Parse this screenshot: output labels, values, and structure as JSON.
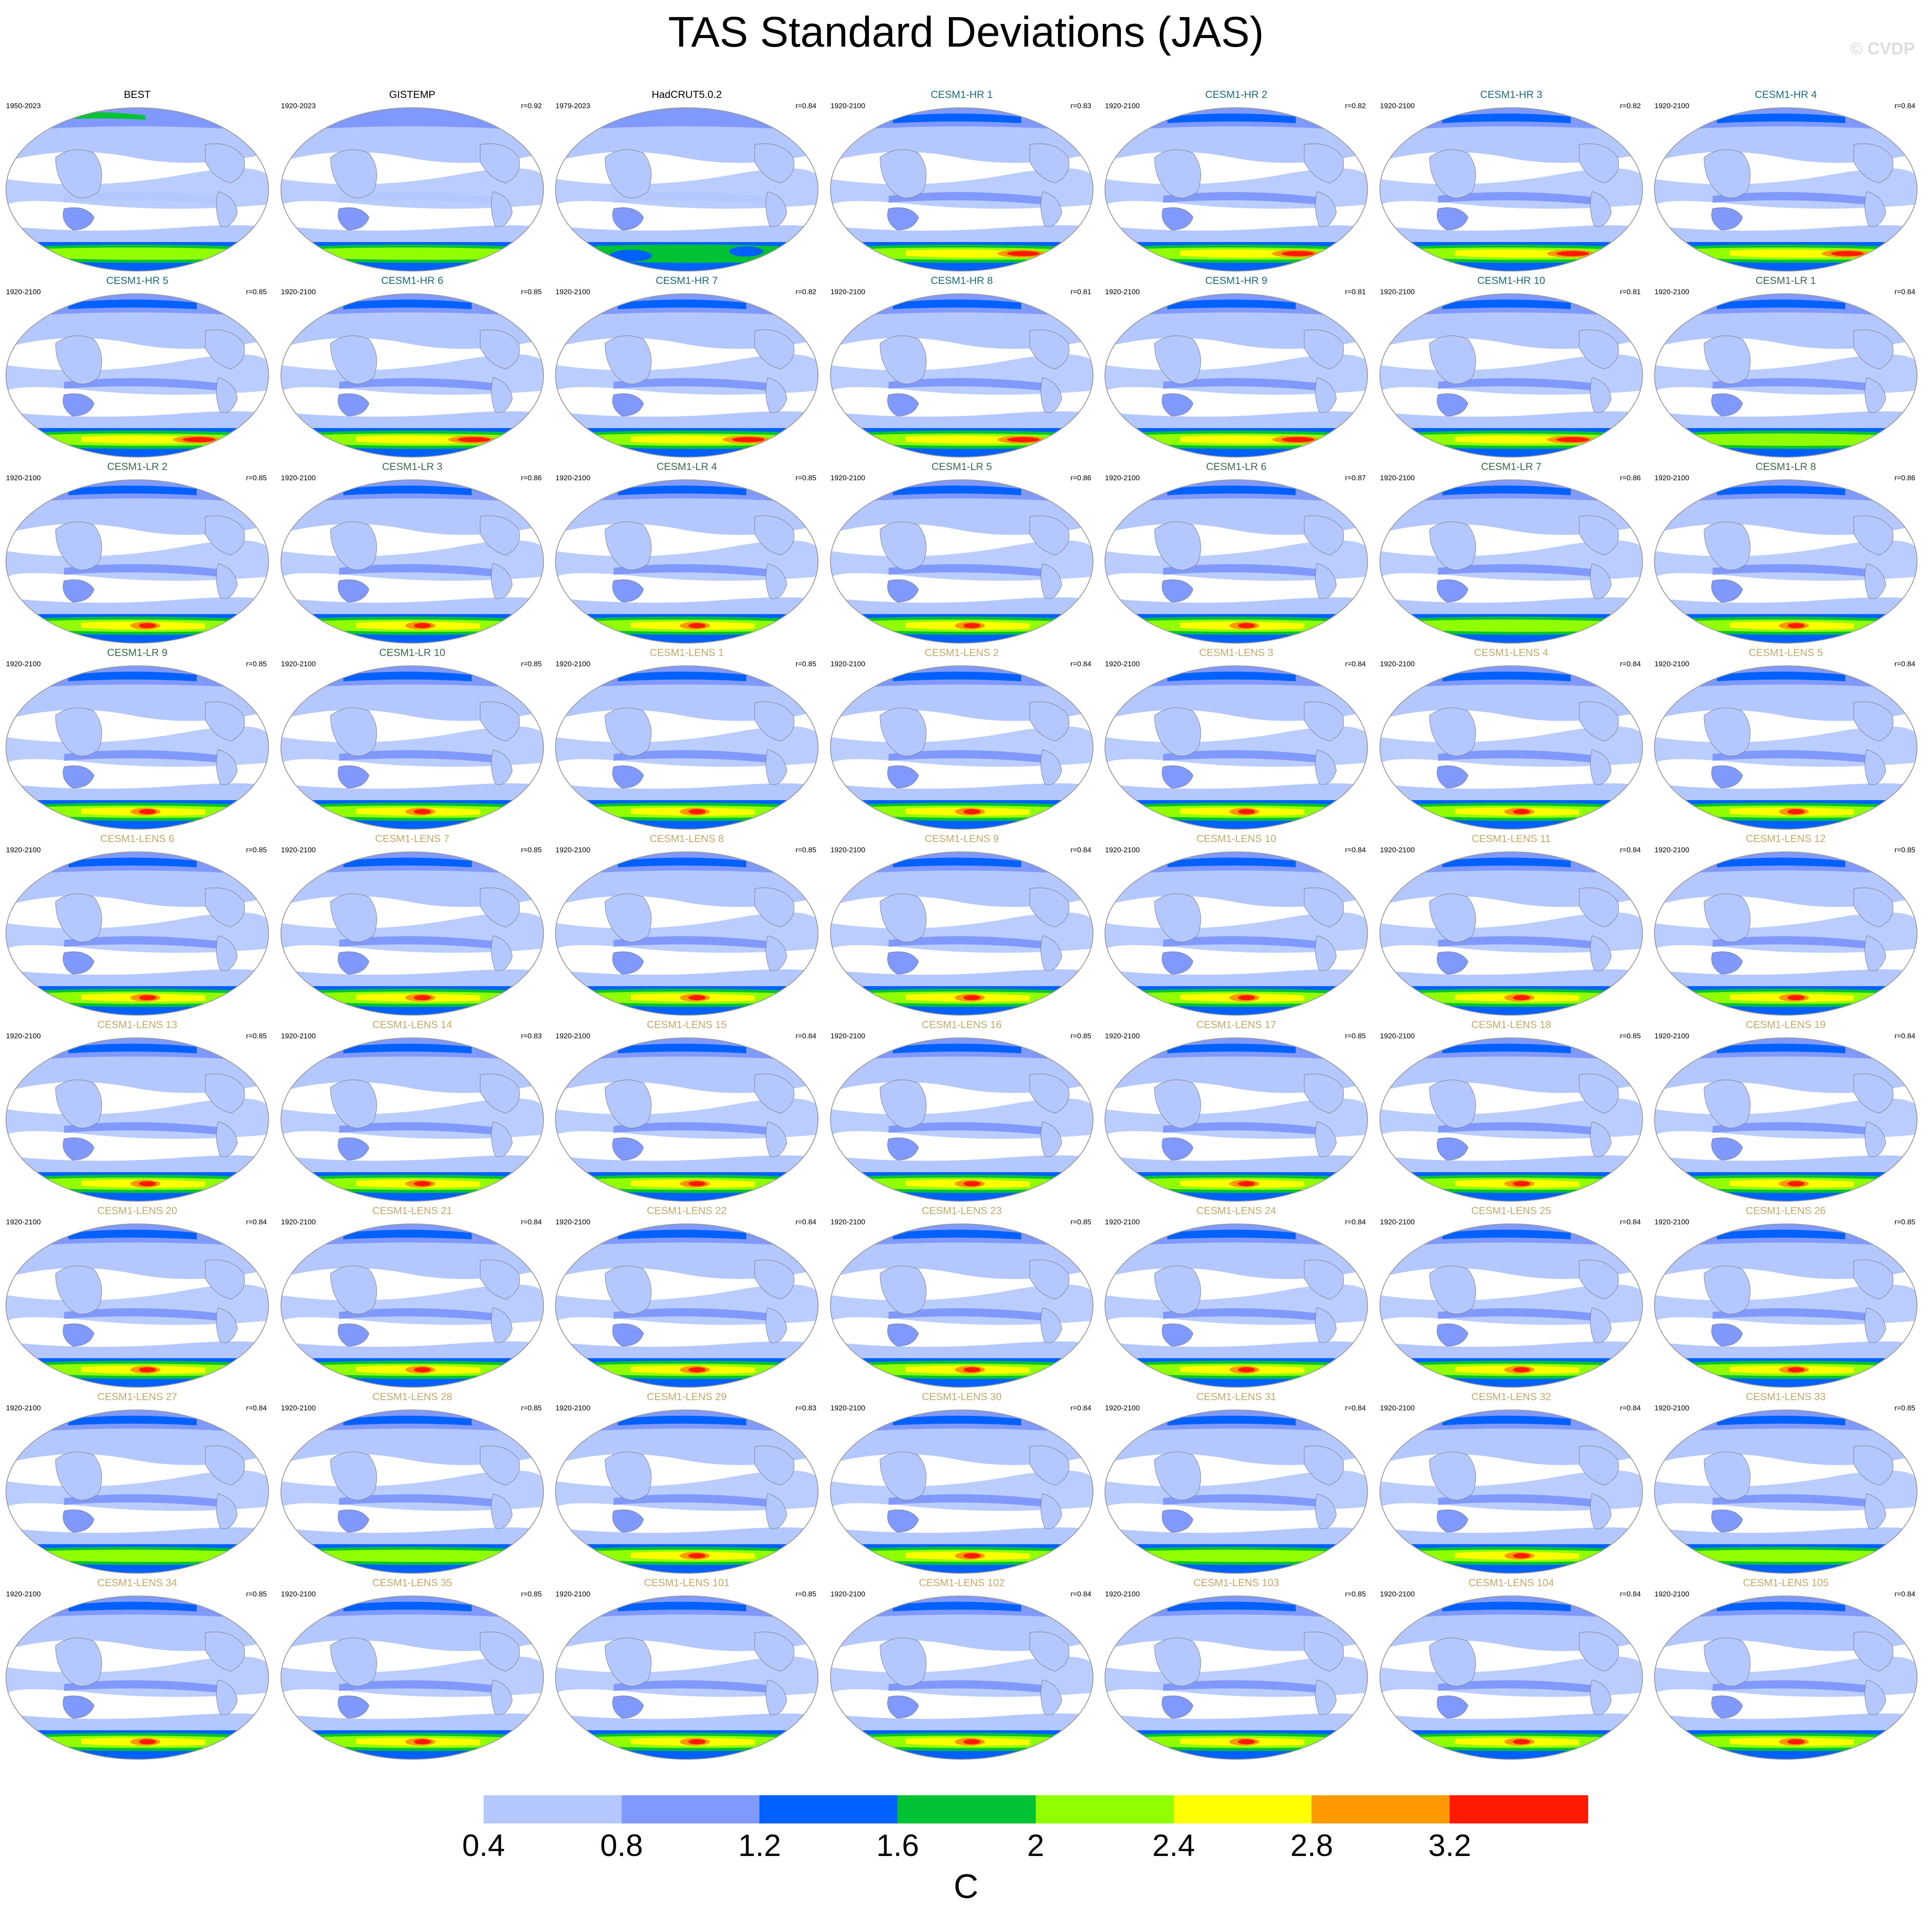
{
  "title": "TAS Standard Deviations (JAS)",
  "watermark": "© CVDP",
  "colors": {
    "reference": "#000000",
    "cesm1_hr": "#1b6e80",
    "cesm1_lr": "#3a6b4a",
    "cesm1_lens": "#c8a96a"
  },
  "panels": [
    {
      "title": "BEST",
      "years": "1950-2023",
      "r": "",
      "group": "reference",
      "south_max": 2
    },
    {
      "title": "GISTEMP",
      "years": "1920-2023",
      "r": "r=0.92",
      "group": "reference",
      "south_max": 2
    },
    {
      "title": "HadCRUT5.0.2",
      "years": "1979-2023",
      "r": "r=0.84",
      "group": "reference",
      "south_max": 1
    },
    {
      "title": "CESM1-HR 1",
      "years": "1920-2100",
      "r": "r=0.83",
      "group": "cesm1_hr",
      "south_max": 3
    },
    {
      "title": "CESM1-HR 2",
      "years": "1920-2100",
      "r": "r=0.82",
      "group": "cesm1_hr",
      "south_max": 3
    },
    {
      "title": "CESM1-HR 3",
      "years": "1920-2100",
      "r": "r=0.82",
      "group": "cesm1_hr",
      "south_max": 3
    },
    {
      "title": "CESM1-HR 4",
      "years": "1920-2100",
      "r": "r=0.84",
      "group": "cesm1_hr",
      "south_max": 3
    },
    {
      "title": "CESM1-HR 5",
      "years": "1920-2100",
      "r": "r=0.85",
      "group": "cesm1_hr",
      "south_max": 3
    },
    {
      "title": "CESM1-HR 6",
      "years": "1920-2100",
      "r": "r=0.85",
      "group": "cesm1_hr",
      "south_max": 3
    },
    {
      "title": "CESM1-HR 7",
      "years": "1920-2100",
      "r": "r=0.82",
      "group": "cesm1_hr",
      "south_max": 3
    },
    {
      "title": "CESM1-HR 8",
      "years": "1920-2100",
      "r": "r=0.81",
      "group": "cesm1_hr",
      "south_max": 3
    },
    {
      "title": "CESM1-HR 9",
      "years": "1920-2100",
      "r": "r=0.81",
      "group": "cesm1_hr",
      "south_max": 3
    },
    {
      "title": "CESM1-HR 10",
      "years": "1920-2100",
      "r": "r=0.81",
      "group": "cesm1_hr",
      "south_max": 3
    },
    {
      "title": "CESM1-LR 1",
      "years": "1920-2100",
      "r": "r=0.84",
      "group": "cesm1_lr",
      "south_max": 2
    },
    {
      "title": "CESM1-LR 2",
      "years": "1920-2100",
      "r": "r=0.85",
      "group": "cesm1_lr",
      "south_max": 3
    },
    {
      "title": "CESM1-LR 3",
      "years": "1920-2100",
      "r": "r=0.86",
      "group": "cesm1_lr",
      "south_max": 3
    },
    {
      "title": "CESM1-LR 4",
      "years": "1920-2100",
      "r": "r=0.85",
      "group": "cesm1_lr",
      "south_max": 3
    },
    {
      "title": "CESM1-LR 5",
      "years": "1920-2100",
      "r": "r=0.86",
      "group": "cesm1_lr",
      "south_max": 3
    },
    {
      "title": "CESM1-LR 6",
      "years": "1920-2100",
      "r": "r=0.87",
      "group": "cesm1_lr",
      "south_max": 3
    },
    {
      "title": "CESM1-LR 7",
      "years": "1920-2100",
      "r": "r=0.86",
      "group": "cesm1_lr",
      "south_max": 2
    },
    {
      "title": "CESM1-LR 8",
      "years": "1920-2100",
      "r": "r=0.86",
      "group": "cesm1_lr",
      "south_max": 3
    },
    {
      "title": "CESM1-LR 9",
      "years": "1920-2100",
      "r": "r=0.85",
      "group": "cesm1_lr",
      "south_max": 3
    },
    {
      "title": "CESM1-LR 10",
      "years": "1920-2100",
      "r": "r=0.85",
      "group": "cesm1_lr",
      "south_max": 3
    },
    {
      "title": "CESM1-LENS 1",
      "years": "1920-2100",
      "r": "r=0.85",
      "group": "cesm1_lens",
      "south_max": 3
    },
    {
      "title": "CESM1-LENS 2",
      "years": "1920-2100",
      "r": "r=0.84",
      "group": "cesm1_lens",
      "south_max": 3
    },
    {
      "title": "CESM1-LENS 3",
      "years": "1920-2100",
      "r": "r=0.84",
      "group": "cesm1_lens",
      "south_max": 3
    },
    {
      "title": "CESM1-LENS 4",
      "years": "1920-2100",
      "r": "r=0.84",
      "group": "cesm1_lens",
      "south_max": 3
    },
    {
      "title": "CESM1-LENS 5",
      "years": "1920-2100",
      "r": "r=0.84",
      "group": "cesm1_lens",
      "south_max": 3
    },
    {
      "title": "CESM1-LENS 6",
      "years": "1920-2100",
      "r": "r=0.85",
      "group": "cesm1_lens",
      "south_max": 3
    },
    {
      "title": "CESM1-LENS 7",
      "years": "1920-2100",
      "r": "r=0.85",
      "group": "cesm1_lens",
      "south_max": 3
    },
    {
      "title": "CESM1-LENS 8",
      "years": "1920-2100",
      "r": "r=0.85",
      "group": "cesm1_lens",
      "south_max": 3
    },
    {
      "title": "CESM1-LENS 9",
      "years": "1920-2100",
      "r": "r=0.84",
      "group": "cesm1_lens",
      "south_max": 3
    },
    {
      "title": "CESM1-LENS 10",
      "years": "1920-2100",
      "r": "r=0.84",
      "group": "cesm1_lens",
      "south_max": 3
    },
    {
      "title": "CESM1-LENS 11",
      "years": "1920-2100",
      "r": "r=0.84",
      "group": "cesm1_lens",
      "south_max": 3
    },
    {
      "title": "CESM1-LENS 12",
      "years": "1920-2100",
      "r": "r=0.85",
      "group": "cesm1_lens",
      "south_max": 3
    },
    {
      "title": "CESM1-LENS 13",
      "years": "1920-2100",
      "r": "r=0.85",
      "group": "cesm1_lens",
      "south_max": 3
    },
    {
      "title": "CESM1-LENS 14",
      "years": "1920-2100",
      "r": "r=0.83",
      "group": "cesm1_lens",
      "south_max": 3
    },
    {
      "title": "CESM1-LENS 15",
      "years": "1920-2100",
      "r": "r=0.84",
      "group": "cesm1_lens",
      "south_max": 3
    },
    {
      "title": "CESM1-LENS 16",
      "years": "1920-2100",
      "r": "r=0.85",
      "group": "cesm1_lens",
      "south_max": 3
    },
    {
      "title": "CESM1-LENS 17",
      "years": "1920-2100",
      "r": "r=0.85",
      "group": "cesm1_lens",
      "south_max": 3
    },
    {
      "title": "CESM1-LENS 18",
      "years": "1920-2100",
      "r": "r=0.85",
      "group": "cesm1_lens",
      "south_max": 3
    },
    {
      "title": "CESM1-LENS 19",
      "years": "1920-2100",
      "r": "r=0.84",
      "group": "cesm1_lens",
      "south_max": 3
    },
    {
      "title": "CESM1-LENS 20",
      "years": "1920-2100",
      "r": "r=0.84",
      "group": "cesm1_lens",
      "south_max": 3
    },
    {
      "title": "CESM1-LENS 21",
      "years": "1920-2100",
      "r": "r=0.84",
      "group": "cesm1_lens",
      "south_max": 3
    },
    {
      "title": "CESM1-LENS 22",
      "years": "1920-2100",
      "r": "r=0.84",
      "group": "cesm1_lens",
      "south_max": 3
    },
    {
      "title": "CESM1-LENS 23",
      "years": "1920-2100",
      "r": "r=0.85",
      "group": "cesm1_lens",
      "south_max": 3
    },
    {
      "title": "CESM1-LENS 24",
      "years": "1920-2100",
      "r": "r=0.84",
      "group": "cesm1_lens",
      "south_max": 3
    },
    {
      "title": "CESM1-LENS 25",
      "years": "1920-2100",
      "r": "r=0.84",
      "group": "cesm1_lens",
      "south_max": 3
    },
    {
      "title": "CESM1-LENS 26",
      "years": "1920-2100",
      "r": "r=0.85",
      "group": "cesm1_lens",
      "south_max": 3
    },
    {
      "title": "CESM1-LENS 27",
      "years": "1920-2100",
      "r": "r=0.84",
      "group": "cesm1_lens",
      "south_max": 2
    },
    {
      "title": "CESM1-LENS 28",
      "years": "1920-2100",
      "r": "r=0.85",
      "group": "cesm1_lens",
      "south_max": 2
    },
    {
      "title": "CESM1-LENS 29",
      "years": "1920-2100",
      "r": "r=0.83",
      "group": "cesm1_lens",
      "south_max": 3
    },
    {
      "title": "CESM1-LENS 30",
      "years": "1920-2100",
      "r": "r=0.84",
      "group": "cesm1_lens",
      "south_max": 3
    },
    {
      "title": "CESM1-LENS 31",
      "years": "1920-2100",
      "r": "r=0.84",
      "group": "cesm1_lens",
      "south_max": 2
    },
    {
      "title": "CESM1-LENS 32",
      "years": "1920-2100",
      "r": "r=0.84",
      "group": "cesm1_lens",
      "south_max": 3
    },
    {
      "title": "CESM1-LENS 33",
      "years": "1920-2100",
      "r": "r=0.85",
      "group": "cesm1_lens",
      "south_max": 2
    },
    {
      "title": "CESM1-LENS 34",
      "years": "1920-2100",
      "r": "r=0.85",
      "group": "cesm1_lens",
      "south_max": 3
    },
    {
      "title": "CESM1-LENS 35",
      "years": "1920-2100",
      "r": "r=0.85",
      "group": "cesm1_lens",
      "south_max": 3
    },
    {
      "title": "CESM1-LENS 101",
      "years": "1920-2100",
      "r": "r=0.85",
      "group": "cesm1_lens",
      "south_max": 3
    },
    {
      "title": "CESM1-LENS 102",
      "years": "1920-2100",
      "r": "r=0.84",
      "group": "cesm1_lens",
      "south_max": 3
    },
    {
      "title": "CESM1-LENS 103",
      "years": "1920-2100",
      "r": "r=0.85",
      "group": "cesm1_lens",
      "south_max": 3
    },
    {
      "title": "CESM1-LENS 104",
      "years": "1920-2100",
      "r": "r=0.84",
      "group": "cesm1_lens",
      "south_max": 3
    },
    {
      "title": "CESM1-LENS 105",
      "years": "1920-2100",
      "r": "r=0.84",
      "group": "cesm1_lens",
      "south_max": 3
    }
  ],
  "colorbar": {
    "labels": [
      "0.4",
      "0.8",
      "1.2",
      "1.6",
      "2",
      "2.4",
      "2.8",
      "3.2"
    ],
    "colors": [
      "#ffffff",
      "#b4c8ff",
      "#8099ff",
      "#0061ff",
      "#00c233",
      "#91ff00",
      "#ffff00",
      "#ff9900",
      "#ff1a00"
    ],
    "unit": "C"
  }
}
